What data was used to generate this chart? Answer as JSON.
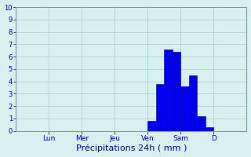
{
  "bar_values": [
    0,
    0,
    0,
    0,
    0,
    0,
    0,
    0,
    0,
    0,
    0,
    0,
    0,
    0,
    0,
    0,
    0.8,
    3.8,
    6.6,
    6.4,
    3.6,
    4.5,
    1.2,
    0.3,
    0,
    0,
    0,
    0
  ],
  "xlabel": "Précipitations 24h ( mm )",
  "ylim": [
    0,
    10
  ],
  "yticks": [
    0,
    1,
    2,
    3,
    4,
    5,
    6,
    7,
    8,
    9,
    10
  ],
  "day_labels": [
    "Lun",
    "Mer",
    "Jeu",
    "Ven",
    "Sam",
    "D"
  ],
  "day_positions": [
    4,
    8,
    12,
    16,
    20,
    24
  ],
  "n_bars": 28,
  "bar_color": "#0000ee",
  "bar_edge_color": "#0000bb",
  "background_color": "#d8f0f0",
  "grid_color": "#aacccc",
  "axis_label_color": "#0000cc",
  "tick_label_color": "#0000cc",
  "xlabel_fontsize": 8
}
